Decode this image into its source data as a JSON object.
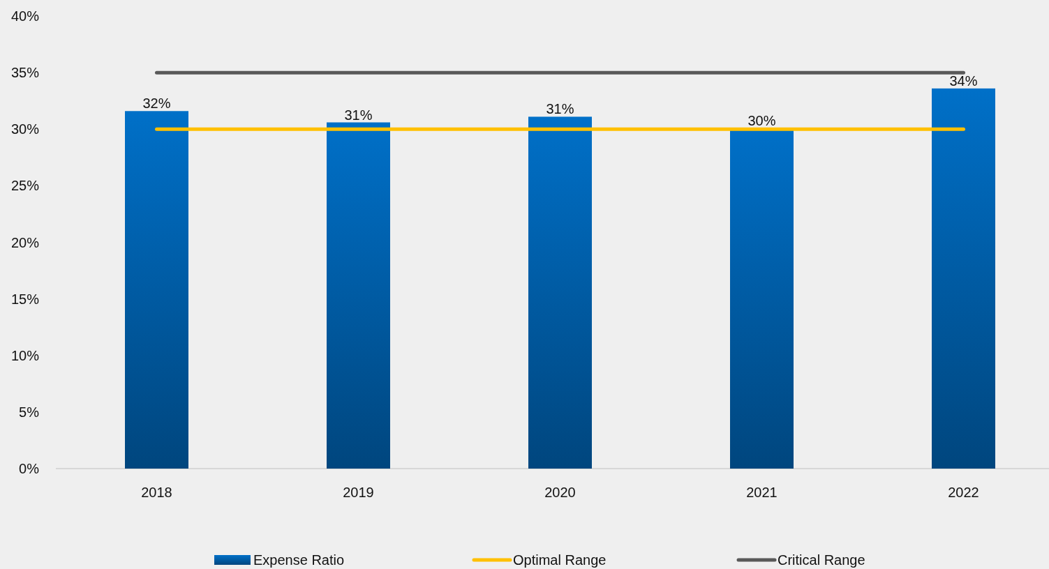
{
  "chart_data": {
    "type": "bar",
    "categories": [
      "2018",
      "2019",
      "2020",
      "2021",
      "2022"
    ],
    "series": [
      {
        "name": "Expense Ratio",
        "color": "#0070c8",
        "values": [
          31.6,
          30.6,
          31.1,
          30.1,
          33.6
        ],
        "value_labels": [
          "32%",
          "31%",
          "31%",
          "30%",
          "34%"
        ]
      },
      {
        "name": "Optimal Range",
        "type": "line",
        "color": "#ffc000",
        "values": [
          30,
          30,
          30,
          30,
          30
        ]
      },
      {
        "name": "Critical Range",
        "type": "line",
        "color": "#595959",
        "values": [
          35,
          35,
          35,
          35,
          35
        ]
      }
    ],
    "ylim": [
      0,
      40
    ],
    "yticks": [
      {
        "value": 0,
        "label": "0%"
      },
      {
        "value": 5,
        "label": "5%"
      },
      {
        "value": 10,
        "label": "10%"
      },
      {
        "value": 15,
        "label": "15%"
      },
      {
        "value": 20,
        "label": "20%"
      },
      {
        "value": 25,
        "label": "25%"
      },
      {
        "value": 30,
        "label": "30%"
      },
      {
        "value": 35,
        "label": "35%"
      },
      {
        "value": 40,
        "label": "40%"
      }
    ],
    "grid": false,
    "legend": "bottom",
    "line_style": "solid",
    "marker": "none"
  }
}
